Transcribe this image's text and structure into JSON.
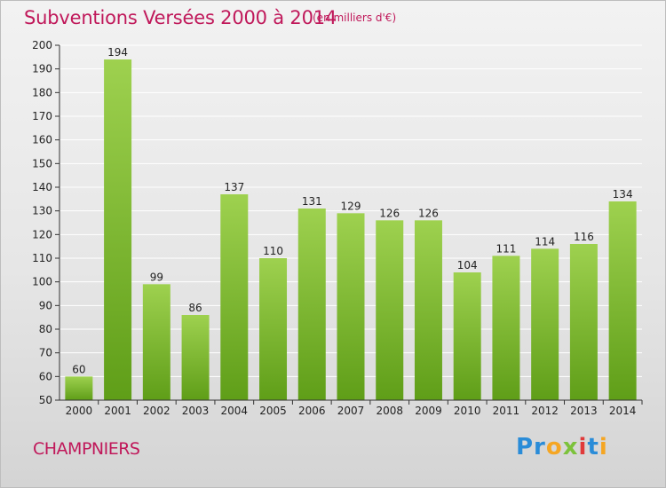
{
  "header": {
    "title": "Subventions Versées 2000 à 2014",
    "subtitle": "(en milliers d'€)"
  },
  "footer": {
    "place": "CHAMPNIERS",
    "logo_text": "Proxiti"
  },
  "colors": {
    "title": "#c0185a",
    "bar_light": "#9ed14f",
    "bar_dark": "#5f9e18"
  },
  "chart_data": {
    "type": "bar",
    "title": "Subventions Versées 2000 à 2014",
    "subtitle": "(en milliers d'€)",
    "categories": [
      "2000",
      "2001",
      "2002",
      "2003",
      "2004",
      "2005",
      "2006",
      "2007",
      "2008",
      "2009",
      "2010",
      "2011",
      "2012",
      "2013",
      "2014"
    ],
    "values": [
      60,
      194,
      99,
      86,
      137,
      110,
      131,
      129,
      126,
      126,
      104,
      111,
      114,
      116,
      134
    ],
    "ylim": [
      50,
      200
    ],
    "yticks": [
      50,
      60,
      70,
      80,
      90,
      100,
      110,
      120,
      130,
      140,
      150,
      160,
      170,
      180,
      190,
      200
    ],
    "grid": true,
    "xlabel": "",
    "ylabel": ""
  }
}
